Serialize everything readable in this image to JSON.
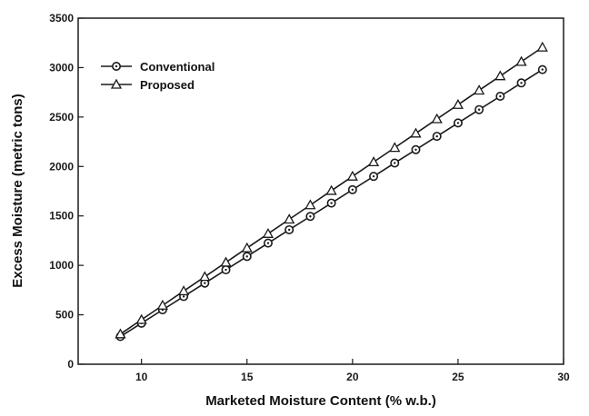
{
  "chart_data": {
    "type": "line",
    "title": "",
    "xlabel": "Marketed Moisture Content (% w.b.)",
    "ylabel": "Excess Moisture (metric tons)",
    "xlim": [
      7,
      30
    ],
    "ylim": [
      0,
      3500
    ],
    "xticks": [
      10,
      15,
      20,
      25,
      30
    ],
    "yticks": [
      0,
      500,
      1000,
      1500,
      2000,
      2500,
      3000,
      3500
    ],
    "grid": false,
    "legend_position": "top-left",
    "x": [
      9,
      10,
      11,
      12,
      13,
      14,
      15,
      16,
      17,
      18,
      19,
      20,
      21,
      22,
      23,
      24,
      25,
      26,
      27,
      28,
      29
    ],
    "series": [
      {
        "name": "Conventional",
        "marker": "circle",
        "color": "#1a1a1a",
        "values": [
          280,
          415,
          550,
          685,
          820,
          955,
          1090,
          1225,
          1360,
          1495,
          1630,
          1765,
          1900,
          2035,
          2170,
          2305,
          2440,
          2575,
          2710,
          2845,
          2980
        ]
      },
      {
        "name": "Proposed",
        "marker": "triangle",
        "color": "#1a1a1a",
        "values": [
          305,
          450,
          595,
          740,
          885,
          1030,
          1175,
          1320,
          1465,
          1610,
          1755,
          1900,
          2045,
          2190,
          2335,
          2480,
          2625,
          2770,
          2915,
          3060,
          3205
        ]
      }
    ]
  }
}
